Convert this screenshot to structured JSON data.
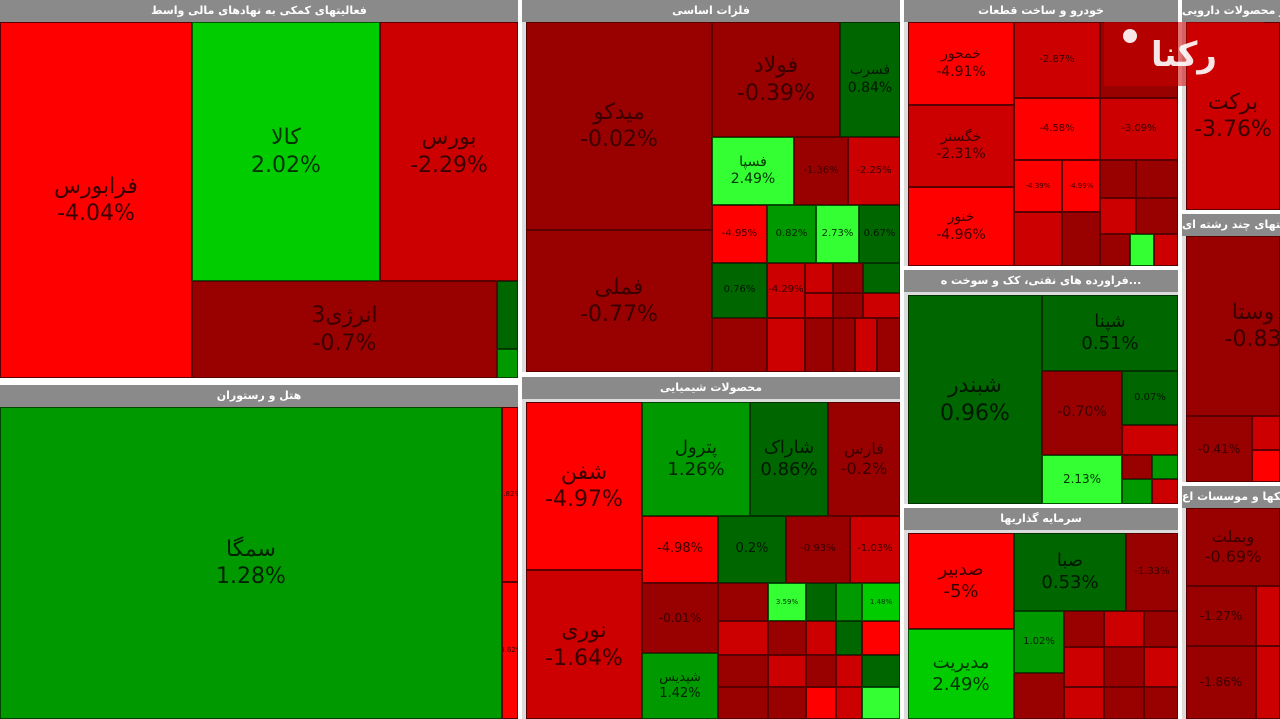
{
  "panels": {
    "financial": "فعالیتهای کمکی به نهادهای مالی واسط",
    "metals": "فلزات اساسی",
    "auto": "خودرو و ساخت قطعات",
    "pharma": "مواد و محصولات دارویی",
    "hotel": "هتل و رستوران",
    "chemical": "محصولات شیمیایی",
    "oil": "...فراورده های نفتی، کک و سوخت ه",
    "multi": "شرکتهای چند رشته ای",
    "invest": "سرمایه گذاریها",
    "bank": "بانکها و موسسات اع"
  },
  "tiles": {
    "faraboors": {
      "name": "فرابورس",
      "pct": "-4.04%"
    },
    "kala": {
      "name": "کالا",
      "pct": "2.02%"
    },
    "boors": {
      "name": "بورس",
      "pct": "-2.29%"
    },
    "energy3": {
      "name": "انرژی3",
      "pct": "-0.7%"
    },
    "samga": {
      "name": "سمگا",
      "pct": "1.28%"
    },
    "hotel_a": {
      "name": "",
      "pct": "3.82%"
    },
    "hotel_b": {
      "name": "",
      "pct": "-4.62%"
    },
    "midko": {
      "name": "میدکو",
      "pct": "-0.02%"
    },
    "foolad": {
      "name": "فولاد",
      "pct": "-0.39%"
    },
    "fesorb": {
      "name": "فسرب",
      "pct": "0.84%"
    },
    "fameli": {
      "name": "فملی",
      "pct": "-0.77%"
    },
    "fesepa": {
      "name": "فسپا",
      "pct": "2.49%"
    },
    "met_a": {
      "name": "",
      "pct": "-1.36%"
    },
    "met_b": {
      "name": "",
      "pct": "-2.25%"
    },
    "met_c": {
      "name": "",
      "pct": "-4.95%"
    },
    "met_d": {
      "name": "",
      "pct": "0.82%"
    },
    "met_e": {
      "name": "",
      "pct": "2.73%"
    },
    "met_f": {
      "name": "",
      "pct": "0.67%"
    },
    "met_g": {
      "name": "",
      "pct": "0.76%"
    },
    "met_h": {
      "name": "",
      "pct": "-4.29%"
    },
    "shafan": {
      "name": "شفن",
      "pct": "-4.97%"
    },
    "petrol": {
      "name": "پترول",
      "pct": "1.26%"
    },
    "sharak": {
      "name": "شاراک",
      "pct": "0.86%"
    },
    "farsi": {
      "name": "فارس",
      "pct": "-0.2%"
    },
    "nouri": {
      "name": "نوری",
      "pct": "-1.64%"
    },
    "shalab": {
      "name": "",
      "pct": "-4.98%"
    },
    "shegooya": {
      "name": "",
      "pct": "0.2%"
    },
    "chem_a": {
      "name": "",
      "pct": "-0.93%"
    },
    "chem_b": {
      "name": "",
      "pct": "-1.03%"
    },
    "chem_c": {
      "name": "",
      "pct": "-0.01%"
    },
    "chem_d": {
      "name": "",
      "pct": "3.59%"
    },
    "chem_e": {
      "name": "",
      "pct": "1.48%"
    },
    "shediss": {
      "name": "شپدیس",
      "pct": "1.42%"
    },
    "khamhor": {
      "name": "خمحور",
      "pct": "-4.91%"
    },
    "khegostar": {
      "name": "خگستر",
      "pct": "-2.31%"
    },
    "khenour": {
      "name": "خنور",
      "pct": "-4.96%"
    },
    "khoveh": {
      "name": "",
      "pct": "-2.87%"
    },
    "khour": {
      "name": "",
      "pct": "-4.58%"
    },
    "khamehr": {
      "name": "",
      "pct": "-3.09%"
    },
    "auto_a": {
      "name": "",
      "pct": "-4.39%"
    },
    "auto_b": {
      "name": "",
      "pct": "-4.99%"
    },
    "barkat": {
      "name": "برکت",
      "pct": "-3.76%"
    },
    "shebandar": {
      "name": "شبندر",
      "pct": "0.96%"
    },
    "shepna": {
      "name": "شپنا",
      "pct": "0.51%"
    },
    "shiran": {
      "name": "",
      "pct": "-0.70%"
    },
    "shesepa": {
      "name": "",
      "pct": "2.13%"
    },
    "oil_a": {
      "name": "",
      "pct": "0.07%"
    },
    "vasta": {
      "name": "وستا",
      "pct": "-0.83"
    },
    "multi_a": {
      "name": "",
      "pct": "-0.41%"
    },
    "sedbir": {
      "name": "صدبیر",
      "pct": "-5%"
    },
    "saba": {
      "name": "صبا",
      "pct": "0.53%"
    },
    "inv_a": {
      "name": "",
      "pct": "-1.33%"
    },
    "modiriat": {
      "name": "مدیریت",
      "pct": "2.49%"
    },
    "vasanat": {
      "name": "",
      "pct": "1.02%"
    },
    "vabmellat": {
      "name": "وبملت",
      "pct": "-0.69%"
    },
    "bank_a": {
      "name": "",
      "pct": "-1.27%"
    },
    "bank_b": {
      "name": "",
      "pct": "-1.86%"
    }
  },
  "watermark": "رکنا"
}
